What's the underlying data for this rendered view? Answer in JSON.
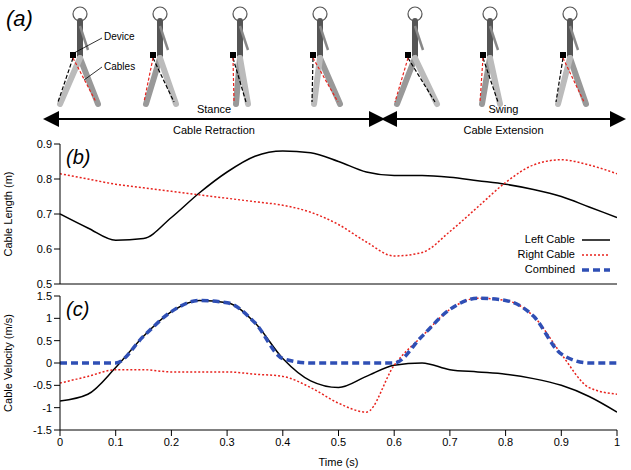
{
  "illustration": {
    "label": "(a)",
    "callouts": [
      "Device",
      "Cables"
    ],
    "phases": [
      {
        "label": "Stance",
        "sub_label": "Cable Retraction"
      },
      {
        "label": "Swing",
        "sub_label": "Cable Extension"
      }
    ]
  },
  "chart_data": [
    {
      "type": "line",
      "annotations": [
        "(b)"
      ],
      "y_label": "Cable Length (m)",
      "x": [
        0,
        0.05,
        0.1,
        0.15,
        0.2,
        0.25,
        0.3,
        0.35,
        0.4,
        0.45,
        0.5,
        0.55,
        0.6,
        0.65,
        0.7,
        0.75,
        0.8,
        0.85,
        0.9,
        0.95,
        1
      ],
      "series": [
        {
          "name": "Left Cable",
          "color": "#000000",
          "line_style": "solid",
          "values": [
            0.7,
            0.66,
            0.625,
            0.63,
            0.69,
            0.76,
            0.82,
            0.865,
            0.88,
            0.875,
            0.85,
            0.82,
            0.81,
            0.81,
            0.805,
            0.795,
            0.785,
            0.77,
            0.75,
            0.72,
            0.69
          ]
        },
        {
          "name": "Right Cable",
          "color": "#e8231e",
          "line_style": "dotted",
          "values": [
            0.815,
            0.8,
            0.785,
            0.775,
            0.765,
            0.755,
            0.745,
            0.735,
            0.725,
            0.705,
            0.67,
            0.62,
            0.58,
            0.59,
            0.65,
            0.72,
            0.79,
            0.84,
            0.855,
            0.84,
            0.815
          ]
        }
      ],
      "xlim": [
        0,
        1
      ],
      "xticks": [
        0,
        0.1,
        0.2,
        0.3,
        0.4,
        0.5,
        0.6,
        0.7,
        0.8,
        0.9,
        1
      ],
      "ylim": [
        0.5,
        0.9
      ],
      "yticks": [
        0.5,
        0.6,
        0.7,
        0.8,
        0.9
      ],
      "grid": false,
      "tick_labels": "y",
      "legend": "lower right"
    },
    {
      "type": "line",
      "annotations": [
        "(c)"
      ],
      "x_label": "Time (s)",
      "y_label": "Cable Velocity (m/s)",
      "x": [
        0,
        0.05,
        0.1,
        0.15,
        0.2,
        0.25,
        0.3,
        0.35,
        0.4,
        0.45,
        0.5,
        0.55,
        0.6,
        0.65,
        0.7,
        0.75,
        0.8,
        0.85,
        0.9,
        0.95,
        1
      ],
      "series": [
        {
          "name": "Left Cable",
          "color": "#000000",
          "line_style": "solid",
          "values": [
            -0.85,
            -0.7,
            -0.1,
            0.6,
            1.15,
            1.4,
            1.35,
            0.9,
            0.1,
            -0.4,
            -0.55,
            -0.3,
            -0.05,
            0,
            -0.15,
            -0.2,
            -0.25,
            -0.35,
            -0.5,
            -0.75,
            -1.1
          ]
        },
        {
          "name": "Right Cable",
          "color": "#e8231e",
          "line_style": "dotted",
          "values": [
            -0.45,
            -0.3,
            -0.15,
            -0.15,
            -0.2,
            -0.2,
            -0.2,
            -0.25,
            -0.3,
            -0.55,
            -0.9,
            -1.1,
            -0.05,
            0.6,
            1.2,
            1.45,
            1.4,
            1.05,
            0.2,
            -0.55,
            -0.7
          ]
        },
        {
          "name": "Combined",
          "color": "#2f4fb5",
          "line_style": "dashed",
          "values": [
            0,
            0,
            0,
            0.6,
            1.15,
            1.4,
            1.35,
            0.9,
            0.1,
            0,
            0,
            0,
            0,
            0.6,
            1.2,
            1.45,
            1.4,
            1.05,
            0.2,
            0,
            0
          ]
        }
      ],
      "xlim": [
        0,
        1
      ],
      "xticks": [
        0,
        0.1,
        0.2,
        0.3,
        0.4,
        0.5,
        0.6,
        0.7,
        0.8,
        0.9,
        1
      ],
      "ylim": [
        -1.5,
        1.5
      ],
      "yticks": [
        -1.5,
        -1,
        -0.5,
        0,
        0.5,
        1,
        1.5
      ],
      "grid": false
    }
  ]
}
